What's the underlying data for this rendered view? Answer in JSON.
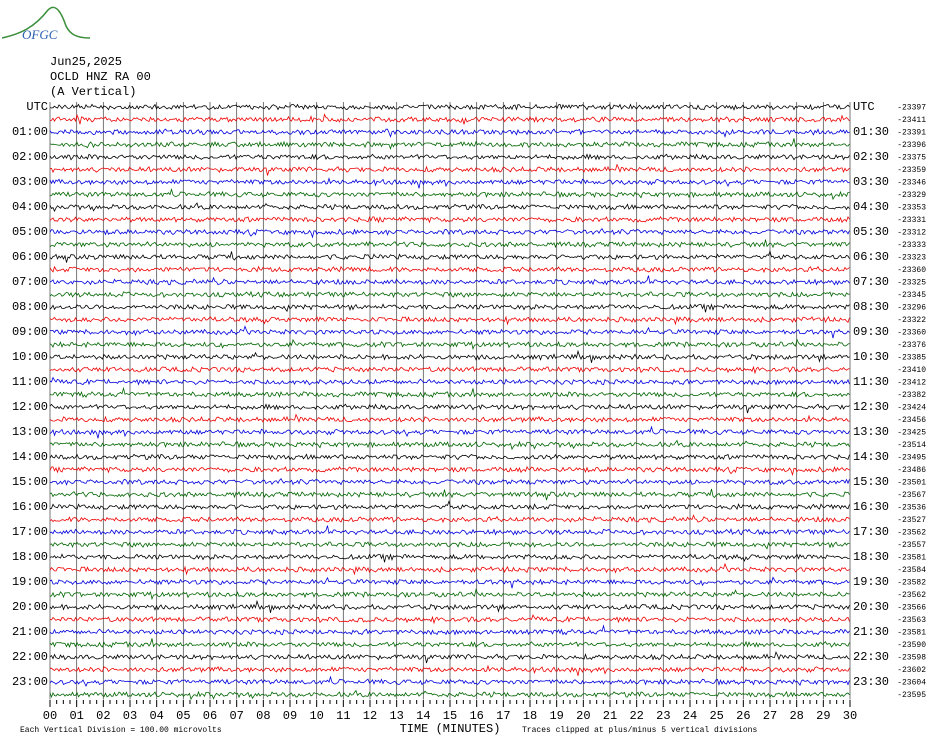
{
  "header": {
    "logo": "OFGC",
    "date": "Jun25,2025",
    "station": "OCLD HNZ RA 00",
    "component": "(A Vertical)"
  },
  "left_labels": [
    "UTC",
    "01:00",
    "02:00",
    "03:00",
    "04:00",
    "05:00",
    "06:00",
    "07:00",
    "08:00",
    "09:00",
    "10:00",
    "11:00",
    "12:00",
    "13:00",
    "14:00",
    "15:00",
    "16:00",
    "17:00",
    "18:00",
    "19:00",
    "20:00",
    "21:00",
    "22:00",
    "23:00"
  ],
  "right_labels": [
    "UTC",
    "01:30",
    "02:30",
    "03:30",
    "04:30",
    "05:30",
    "06:30",
    "07:30",
    "08:30",
    "09:30",
    "10:30",
    "11:30",
    "12:30",
    "13:30",
    "14:30",
    "15:30",
    "16:30",
    "17:30",
    "18:30",
    "19:30",
    "20:30",
    "21:30",
    "22:30",
    "23:30"
  ],
  "trace_offsets": [
    -23397,
    -23411,
    -23391,
    -23396,
    -23375,
    -23359,
    -23346,
    -23329,
    -23353,
    -23331,
    -23312,
    -23333,
    -23323,
    -23360,
    -23325,
    -23345,
    -23296,
    -23322,
    -23360,
    -23376,
    -23385,
    -23410,
    -23412,
    -23382,
    -23424,
    -23456,
    -23425,
    -23514,
    -23495,
    -23486,
    -23501,
    -23567,
    -23536,
    -23527,
    -23562,
    -23557,
    -23581,
    -23584,
    -23582,
    -23562,
    -23566,
    -23563,
    -23581,
    -23590,
    -23598,
    -23602,
    -23604,
    -23595
  ],
  "x_labels": [
    "00",
    "01",
    "02",
    "03",
    "04",
    "05",
    "06",
    "07",
    "08",
    "09",
    "10",
    "11",
    "12",
    "13",
    "14",
    "15",
    "16",
    "17",
    "18",
    "19",
    "20",
    "21",
    "22",
    "23",
    "24",
    "25",
    "26",
    "27",
    "28",
    "29",
    "30"
  ],
  "x_title": "TIME (MINUTES)",
  "footer_left": "Each Vertical Division =  100.00 microvolts",
  "footer_right": "Traces clipped at plus/minus 5 vertical divisions"
}
